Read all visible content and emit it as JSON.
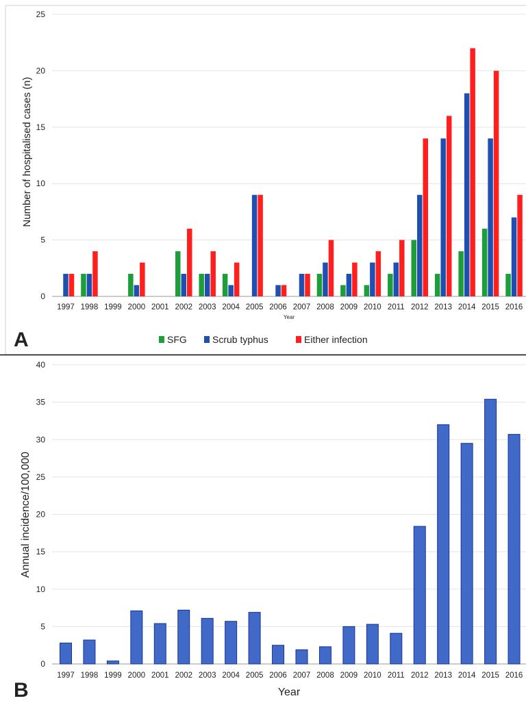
{
  "colors": {
    "sfg": "#1e9e3a",
    "scrub": "#1f4fb0",
    "either": "#ff1f1f",
    "incidence_fill": "#4169c8",
    "incidence_stroke": "#16339a",
    "grid": "#e3e3e3",
    "axis": "#9a9a9a"
  },
  "panels": {
    "a": {
      "letter": "A"
    },
    "b": {
      "letter": "B"
    }
  },
  "chart_data": [
    {
      "type": "bar",
      "panel": "A",
      "title": "",
      "xlabel": "Year",
      "ylabel": "Number  of hospitalised cases (n)",
      "ylim": [
        0,
        25
      ],
      "yticks": [
        0,
        5,
        10,
        15,
        20,
        25
      ],
      "grid": true,
      "legend_position": "bottom",
      "categories": [
        "1997",
        "1998",
        "1999",
        "2000",
        "2001",
        "2002",
        "2003",
        "2004",
        "2005",
        "2006",
        "2007",
        "2008",
        "2009",
        "2010",
        "2011",
        "2012",
        "2013",
        "2014",
        "2015",
        "2016"
      ],
      "series": [
        {
          "name": "SFG",
          "color": "#1e9e3a",
          "values": [
            0,
            2,
            0,
            2,
            0,
            4,
            2,
            2,
            0,
            0,
            0,
            2,
            1,
            1,
            2,
            5,
            2,
            4,
            6,
            2
          ]
        },
        {
          "name": "Scrub typhus",
          "color": "#1f4fb0",
          "values": [
            2,
            2,
            0,
            1,
            0,
            2,
            2,
            1,
            9,
            1,
            2,
            3,
            2,
            3,
            3,
            9,
            14,
            18,
            14,
            7
          ]
        },
        {
          "name": "Either infection",
          "color": "#ff1f1f",
          "values": [
            2,
            4,
            0,
            3,
            0,
            6,
            4,
            3,
            9,
            1,
            2,
            5,
            3,
            4,
            5,
            14,
            16,
            22,
            20,
            9
          ]
        }
      ]
    },
    {
      "type": "bar",
      "panel": "B",
      "title": "",
      "xlabel": "Year",
      "ylabel": "Annual incidence/100,000",
      "ylim": [
        0,
        40
      ],
      "yticks": [
        0,
        5,
        10,
        15,
        20,
        25,
        30,
        35,
        40
      ],
      "grid": true,
      "categories": [
        "1997",
        "1998",
        "1999",
        "2000",
        "2001",
        "2002",
        "2003",
        "2004",
        "2005",
        "2006",
        "2007",
        "2008",
        "2009",
        "2010",
        "2011",
        "2012",
        "2013",
        "2014",
        "2015",
        "2016"
      ],
      "series": [
        {
          "name": "",
          "color": "#4169c8",
          "values": [
            2.8,
            3.2,
            0.4,
            7.1,
            5.4,
            7.2,
            6.1,
            5.7,
            6.9,
            2.5,
            1.9,
            2.3,
            5.0,
            5.3,
            4.1,
            18.4,
            32.0,
            29.5,
            35.4,
            30.7
          ]
        }
      ]
    }
  ]
}
